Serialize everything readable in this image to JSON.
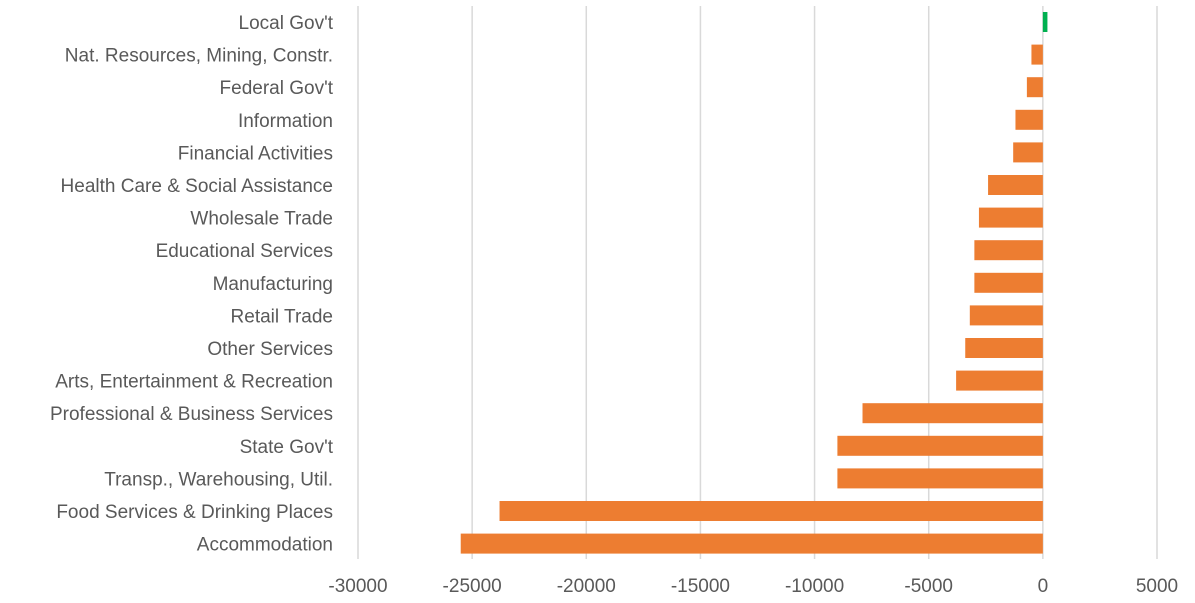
{
  "chart_data": {
    "type": "bar",
    "orientation": "horizontal",
    "title": "",
    "xlabel": "",
    "ylabel": "",
    "categories": [
      "Local Gov't",
      "Nat. Resources, Mining, Constr.",
      "Federal Gov't",
      "Information",
      "Financial Activities",
      "Health Care & Social Assistance",
      "Wholesale Trade",
      "Educational Services",
      "Manufacturing",
      "Retail Trade",
      "Other Services",
      "Arts, Entertainment & Recreation",
      "Professional & Business Services",
      "State Gov't",
      "Transp., Warehousing, Util.",
      "Food Services & Drinking Places",
      "Accommodation"
    ],
    "values": [
      200,
      -500,
      -700,
      -1200,
      -1300,
      -2400,
      -2800,
      -3000,
      -3000,
      -3200,
      -3400,
      -3800,
      -7900,
      -9000,
      -9000,
      -23800,
      -25500
    ],
    "xlim": [
      -30000,
      5000
    ],
    "xticks": [
      "-30000",
      "-25000",
      "-20000",
      "-15000",
      "-10000",
      "-5000",
      "0",
      "5000"
    ],
    "grid": "vertical",
    "legend": "none",
    "colors": {
      "positive": "#00b050",
      "negative": "#ed7d31",
      "grid": "#d9d9d9",
      "text": "#595959"
    }
  }
}
